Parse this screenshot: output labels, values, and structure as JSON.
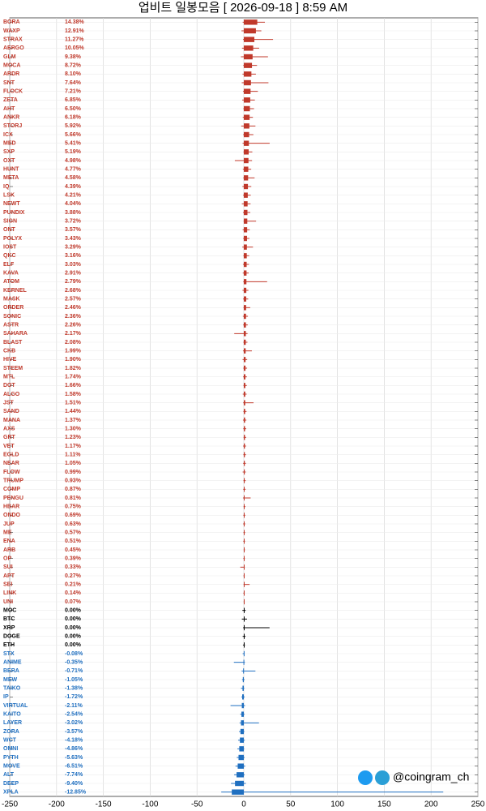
{
  "chart_data": {
    "type": "candlestick",
    "title": "업비트 일봉모음 [ 2026-09-18 ]  8:59 AM",
    "watermark": "@coingram_ch",
    "colors": {
      "up": "#c0392b",
      "flat": "#000000",
      "down": "#1f6fc0"
    },
    "xlim": [
      -250,
      250
    ],
    "xticks": [
      -250,
      -200,
      -150,
      -100,
      -50,
      0,
      50,
      100,
      150,
      200,
      250
    ],
    "grid": true,
    "categories": [
      "BORA",
      "WAXP",
      "STRAX",
      "AERGO",
      "GLM",
      "MOCA",
      "ARDR",
      "SNT",
      "FLOCK",
      "ZETA",
      "AHT",
      "ANKR",
      "STORJ",
      "ICX",
      "MED",
      "SXP",
      "OXT",
      "HUNT",
      "META",
      "IQ",
      "LSK",
      "NEWT",
      "PUNDIX",
      "SIGN",
      "ONT",
      "POLYX",
      "IOST",
      "QKC",
      "ELF",
      "KAVA",
      "ATOM",
      "KERNEL",
      "MASK",
      "ORDER",
      "SONIC",
      "ASTR",
      "SAHARA",
      "BLAST",
      "CKB",
      "HIVE",
      "STEEM",
      "MTL",
      "DOT",
      "ALGO",
      "JST",
      "SAND",
      "MANA",
      "AXS",
      "GRT",
      "VET",
      "EGLD",
      "NEAR",
      "FLOW",
      "TRUMP",
      "COMP",
      "PENGU",
      "HBAR",
      "ONDO",
      "JUP",
      "ME",
      "ENA",
      "ARB",
      "OP",
      "SUI",
      "APT",
      "SEI",
      "LINK",
      "UNI",
      "MOC",
      "BTC",
      "XRP",
      "DOGE",
      "ETH",
      "STX",
      "ANIME",
      "BERA",
      "MEW",
      "TAIKO",
      "IP",
      "VIRTUAL",
      "KAITO",
      "LAYER",
      "ZORA",
      "WCT",
      "OMNI",
      "PYTH",
      "MOVE",
      "ALT",
      "DEEP",
      "XPLA"
    ],
    "values": [
      14.38,
      12.91,
      11.27,
      10.05,
      9.38,
      8.72,
      8.1,
      7.64,
      7.21,
      6.85,
      6.5,
      6.18,
      5.92,
      5.66,
      5.41,
      5.19,
      4.98,
      4.77,
      4.58,
      4.39,
      4.21,
      4.04,
      3.88,
      3.72,
      3.57,
      3.43,
      3.29,
      3.16,
      3.03,
      2.91,
      2.79,
      2.68,
      2.57,
      2.46,
      2.36,
      2.26,
      2.17,
      2.08,
      1.99,
      1.9,
      1.82,
      1.74,
      1.66,
      1.58,
      1.51,
      1.44,
      1.37,
      1.3,
      1.23,
      1.17,
      1.11,
      1.05,
      0.99,
      0.93,
      0.87,
      0.81,
      0.75,
      0.69,
      0.63,
      0.57,
      0.51,
      0.45,
      0.39,
      0.33,
      0.27,
      0.21,
      0.14,
      0.07,
      0,
      0,
      0,
      0,
      0,
      -0.08,
      -0.35,
      -0.71,
      -1.05,
      -1.38,
      -1.72,
      -2.11,
      -2.54,
      -3.02,
      -3.57,
      -4.18,
      -4.86,
      -5.63,
      -6.51,
      -7.74,
      -9.4,
      -12.85
    ],
    "value_labels": [
      "14.38%",
      "12.91%",
      "11.27%",
      "10.05%",
      "9.38%",
      "8.72%",
      "8.10%",
      "7.64%",
      "7.21%",
      "6.85%",
      "6.50%",
      "6.18%",
      "5.92%",
      "5.66%",
      "5.41%",
      "5.19%",
      "4.98%",
      "4.77%",
      "4.58%",
      "4.39%",
      "4.21%",
      "4.04%",
      "3.88%",
      "3.72%",
      "3.57%",
      "3.43%",
      "3.29%",
      "3.16%",
      "3.03%",
      "2.91%",
      "2.79%",
      "2.68%",
      "2.57%",
      "2.46%",
      "2.36%",
      "2.26%",
      "2.17%",
      "2.08%",
      "1.99%",
      "1.90%",
      "1.82%",
      "1.74%",
      "1.66%",
      "1.58%",
      "1.51%",
      "1.44%",
      "1.37%",
      "1.30%",
      "1.23%",
      "1.17%",
      "1.11%",
      "1.05%",
      "0.99%",
      "0.93%",
      "0.87%",
      "0.81%",
      "0.75%",
      "0.69%",
      "0.63%",
      "0.57%",
      "0.51%",
      "0.45%",
      "0.39%",
      "0.33%",
      "0.27%",
      "0.21%",
      "0.14%",
      "0.07%",
      "0.00%",
      "0.00%",
      "0.00%",
      "0.00%",
      "0.00%",
      "-0.08%",
      "-0.35%",
      "-0.71%",
      "-1.05%",
      "-1.38%",
      "-1.72%",
      "-2.11%",
      "-2.54%",
      "-3.02%",
      "-3.57%",
      "-4.18%",
      "-4.86%",
      "-5.63%",
      "-6.51%",
      "-7.74%",
      "-9.40%",
      "-12.85%"
    ],
    "lows": [
      -1.2,
      -2.5,
      -0.8,
      -1.9,
      -3.1,
      -0.6,
      -1.4,
      -2.2,
      -0.9,
      -1.7,
      -0.5,
      -1.1,
      -2.8,
      -0.7,
      -1.3,
      -0.4,
      -9.6,
      -1.0,
      -0.6,
      -1.5,
      -0.8,
      -2.1,
      -0.9,
      -0.3,
      -1.2,
      -0.7,
      -1.6,
      -0.5,
      -0.9,
      -1.1,
      -0.6,
      -1.4,
      -0.8,
      -0.4,
      -1.0,
      -0.7,
      -10.2,
      -0.5,
      -0.9,
      -1.3,
      -0.6,
      -0.8,
      -0.4,
      -1.1,
      -0.7,
      -0.5,
      -0.9,
      -0.6,
      -0.3,
      -0.8,
      -0.5,
      -0.7,
      -1.2,
      -0.4,
      -0.6,
      -0.9,
      -0.3,
      -0.5,
      -0.7,
      -0.4,
      -0.6,
      -0.2,
      -0.5,
      -3.8,
      -0.4,
      -0.3,
      -0.5,
      -0.2,
      -1.5,
      -2.1,
      -0.8,
      -1.2,
      -0.9,
      -1.2,
      -10.6,
      -2.3,
      -1.9,
      -3.0,
      -2.6,
      -14.2,
      -3.8,
      -4.5,
      -5.1,
      -6.0,
      -6.8,
      -7.5,
      -8.9,
      -10.3,
      -13.7,
      -24.1
    ],
    "highs": [
      22.5,
      18.7,
      31.2,
      16.4,
      25.8,
      14.1,
      12.9,
      26.3,
      15.0,
      11.8,
      10.9,
      9.7,
      12.4,
      10.2,
      27.6,
      9.1,
      8.8,
      7.9,
      11.5,
      8.0,
      7.4,
      7.2,
      6.9,
      13.1,
      6.3,
      6.0,
      9.8,
      5.7,
      5.5,
      5.2,
      24.9,
      4.9,
      4.7,
      6.8,
      4.4,
      4.2,
      4.0,
      3.9,
      8.6,
      3.6,
      3.5,
      3.3,
      3.2,
      3.0,
      10.4,
      2.9,
      2.7,
      2.6,
      2.5,
      2.4,
      2.3,
      2.2,
      2.1,
      2.0,
      1.9,
      7.3,
      1.7,
      1.6,
      1.5,
      1.4,
      1.3,
      1.2,
      1.1,
      1.0,
      0.9,
      6.2,
      0.7,
      0.6,
      2.0,
      3.4,
      27.5,
      1.8,
      1.1,
      0.6,
      1.1,
      12.4,
      0.8,
      0.5,
      0.9,
      1.3,
      0.7,
      16.2,
      0.6,
      1.0,
      0.4,
      0.8,
      1.5,
      0.9,
      2.2,
      213.0
    ]
  }
}
